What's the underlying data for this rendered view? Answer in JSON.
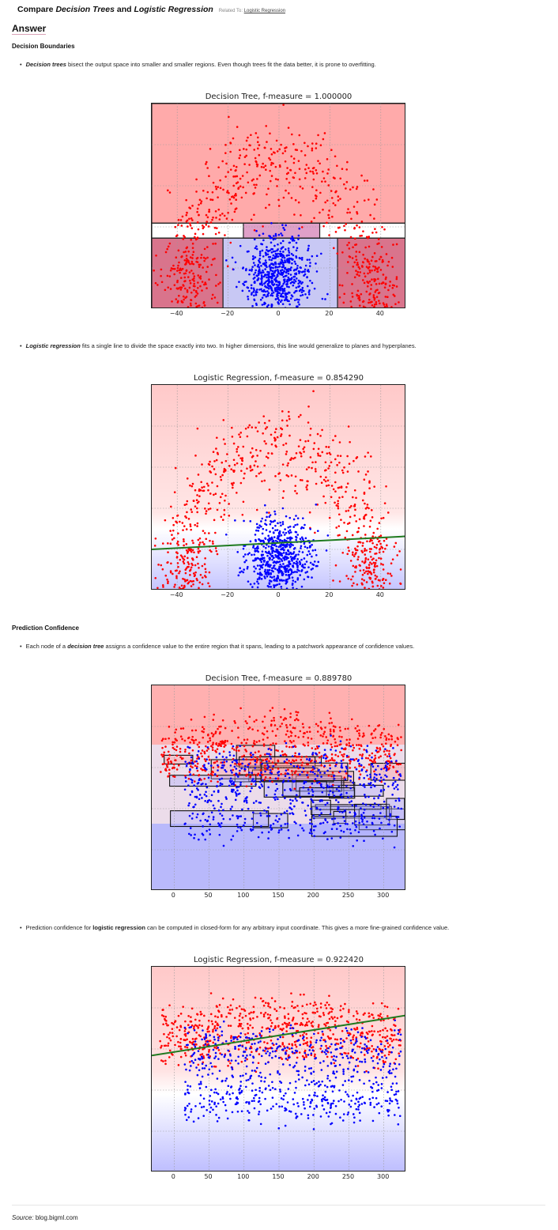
{
  "title": {
    "prefix": "Compare ",
    "term1": "Decision Trees",
    "mid": " and ",
    "term2": "Logistic Regression",
    "related_label": "Related To:",
    "related_link": "Logistic Regression"
  },
  "answer_heading": "Answer",
  "sections": {
    "boundaries": {
      "heading": "Decision Boundaries",
      "bullet1": {
        "term": "Decision trees",
        "text": " bisect the output space into smaller and smaller regions. Even though trees fit the data better, it is prone to overfitting."
      },
      "bullet2": {
        "term": "Logistic regression",
        "text": " fits a single line to divide the space exactly into two. In higher dimensions, this line would generalize to planes and hyperplanes."
      }
    },
    "confidence": {
      "heading": "Prediction Confidence",
      "bullet1": {
        "pre": "Each node of a ",
        "term": "decision tree",
        "text": " assigns a confidence value to the entire region that it spans, leading to a patchwork appearance of confidence values."
      },
      "bullet2": {
        "pre": "Prediction confidence for ",
        "term": "logistic regression",
        "text": " can be computed in closed-form for any arbitrary input coordinate. This gives a more fine-grained confidence value."
      }
    }
  },
  "colors": {
    "red_class": "#ff0000",
    "blue_class": "#0000ff",
    "red_region": "#ffaaaa",
    "blue_region": "#babaff",
    "boundary_line": "#1f7a1f"
  },
  "chart_data": [
    {
      "type": "scatter",
      "title": "Decision Tree, f-measure = 1.000000",
      "x_ticks": [
        "−40",
        "−20",
        "0",
        "20",
        "40"
      ],
      "xlim": [
        -50,
        50
      ],
      "ylim": [
        -5,
        50
      ],
      "grid": true,
      "classes": [
        {
          "color": "red",
          "shape": "semicircular arc",
          "radius_approx": 38
        },
        {
          "color": "blue",
          "shape": "central blob",
          "center": [
            0,
            4
          ]
        }
      ],
      "regions": [
        {
          "x": [
            -50,
            50
          ],
          "y": [
            18,
            50
          ],
          "class": "red"
        },
        {
          "x": [
            -50,
            -22
          ],
          "y": [
            -5,
            14
          ],
          "class": "red"
        },
        {
          "x": [
            -22,
            23
          ],
          "y": [
            -5,
            14
          ],
          "class": "blue"
        },
        {
          "x": [
            23,
            50
          ],
          "y": [
            -5,
            14
          ],
          "class": "red"
        },
        {
          "x": [
            -14,
            16
          ],
          "y": [
            14,
            18
          ],
          "class": "mixed"
        }
      ]
    },
    {
      "type": "scatter",
      "title": "Logistic Regression, f-measure = 0.854290",
      "x_ticks": [
        "−40",
        "−20",
        "0",
        "20",
        "40"
      ],
      "xlim": [
        -50,
        50
      ],
      "ylim": [
        -5,
        50
      ],
      "grid": true,
      "classes": [
        {
          "color": "red",
          "shape": "semicircular arc",
          "radius_approx": 38
        },
        {
          "color": "blue",
          "shape": "central blob",
          "center": [
            0,
            4
          ]
        }
      ],
      "boundary_line": {
        "x": [
          -50,
          50
        ],
        "y": [
          6,
          9.5
        ]
      }
    },
    {
      "type": "scatter",
      "title": "Decision Tree, f-measure = 0.889780",
      "x_ticks": [
        "0",
        "50",
        "100",
        "150",
        "200",
        "250",
        "300"
      ],
      "xlim": [
        -32,
        332
      ],
      "ylim": [
        -20,
        200
      ],
      "grid": true,
      "classes": [
        {
          "color": "red",
          "region": "upper band"
        },
        {
          "color": "blue",
          "region": "lower band"
        }
      ],
      "note": "patchwork of rectangular tree leaf regions across the mixed middle band"
    },
    {
      "type": "scatter",
      "title": "Logistic Regression, f-measure = 0.922420",
      "x_ticks": [
        "0",
        "50",
        "100",
        "150",
        "200",
        "250",
        "300"
      ],
      "xlim": [
        -32,
        332
      ],
      "ylim": [
        -20,
        200
      ],
      "grid": true,
      "classes": [
        {
          "color": "red",
          "region": "upper band"
        },
        {
          "color": "blue",
          "region": "lower band"
        }
      ],
      "boundary_line": {
        "x": [
          -32,
          332
        ],
        "y": [
          105,
          148
        ]
      }
    }
  ],
  "source": {
    "label": "Source:",
    "value": "blog.bigml.com"
  }
}
